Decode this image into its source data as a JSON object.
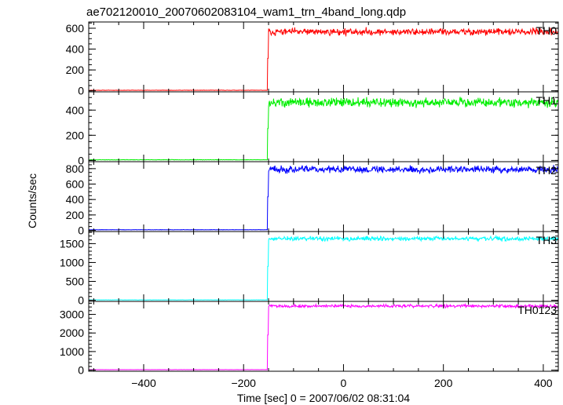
{
  "chart_data": {
    "type": "line",
    "title": "ae702120010_20070602083104_wam1_trn_4band_long.qdp",
    "xlabel": "Time [sec] 0 = 2007/06/02 08:31:04",
    "ylabel": "Counts/sec",
    "xlim": [
      -510,
      430
    ],
    "x_ticks": [
      -400,
      -200,
      0,
      200,
      400
    ],
    "x_tick_labels": [
      "−400",
      "−200",
      "0",
      "200",
      "400"
    ],
    "rise_time": -152,
    "panels": [
      {
        "name": "TH0",
        "color": "#ff0000",
        "ylim": [
          -10,
          660
        ],
        "yticks": [
          0,
          200,
          400,
          600
        ],
        "ytick_labels": [
          "0",
          "200",
          "400",
          "600"
        ],
        "minor_step": 50,
        "pre_level": 5,
        "post_level": 565,
        "noise": 20,
        "seed": 11
      },
      {
        "name": "TH1",
        "color": "#00ee00",
        "ylim": [
          -10,
          545
        ],
        "yticks": [
          0,
          200,
          400
        ],
        "ytick_labels": [
          "0",
          "200",
          "400"
        ],
        "minor_step": 50,
        "pre_level": 5,
        "post_level": 460,
        "noise": 22,
        "seed": 23
      },
      {
        "name": "TH2",
        "color": "#0000ff",
        "ylim": [
          -15,
          890
        ],
        "yticks": [
          0,
          200,
          400,
          600,
          800
        ],
        "ytick_labels": [
          "0",
          "200",
          "400",
          "600",
          "800"
        ],
        "minor_step": 50,
        "pre_level": 8,
        "post_level": 790,
        "noise": 28,
        "seed": 37
      },
      {
        "name": "TH3",
        "color": "#00ffff",
        "ylim": [
          -30,
          1820
        ],
        "yticks": [
          0,
          500,
          1000,
          1500
        ],
        "ytick_labels": [
          "0",
          "500",
          "1000",
          "1500"
        ],
        "minor_step": 100,
        "pre_level": 10,
        "post_level": 1630,
        "noise": 35,
        "seed": 41
      },
      {
        "name": "TH0123",
        "color": "#ff00ff",
        "ylim": [
          -60,
          3700
        ],
        "yticks": [
          0,
          1000,
          2000,
          3000
        ],
        "ytick_labels": [
          "0",
          "1000",
          "2000",
          "3000"
        ],
        "minor_step": 200,
        "pre_level": 25,
        "post_level": 3450,
        "noise": 50,
        "seed": 53
      }
    ]
  }
}
